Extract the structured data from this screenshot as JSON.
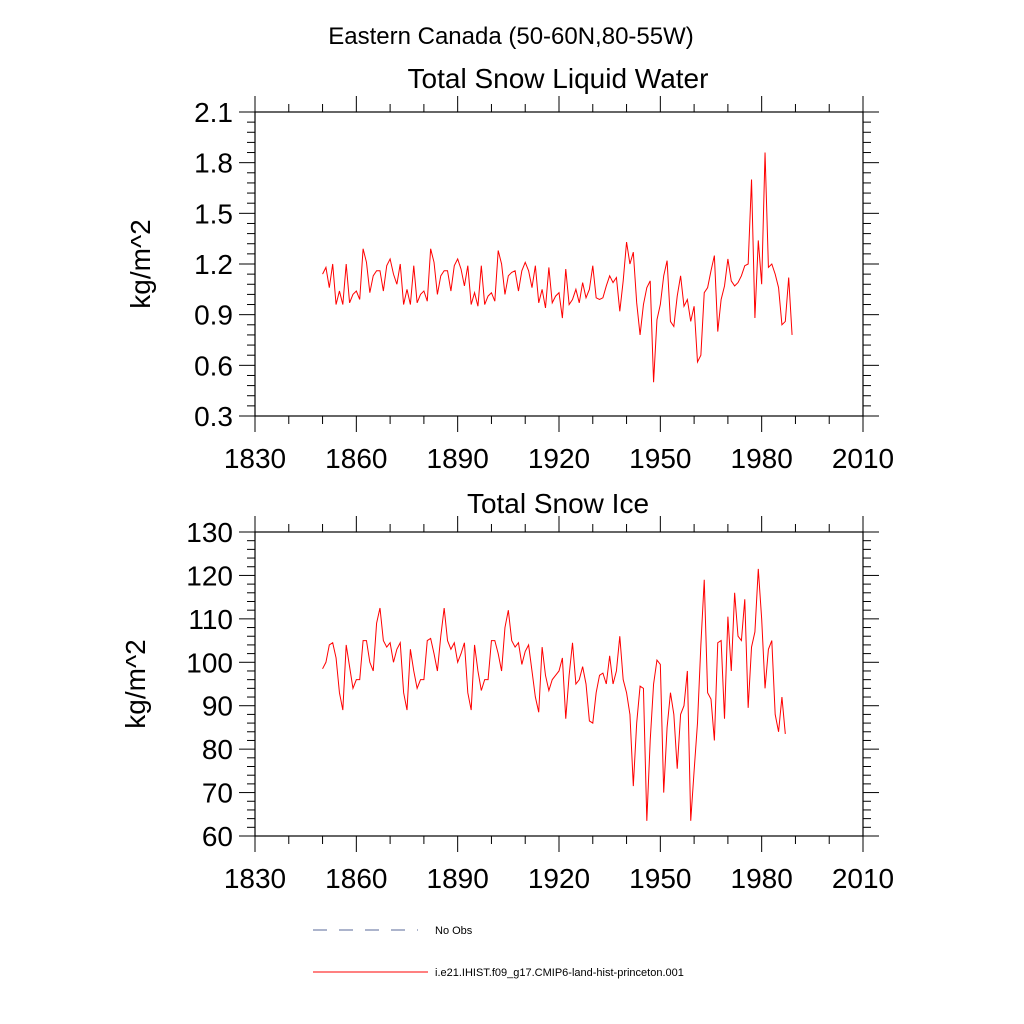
{
  "figure": {
    "title": "Eastern Canada (50-60N,80-55W)"
  },
  "legend": {
    "placement": "bottom",
    "entries": [
      {
        "label": "No Obs",
        "style": "dashed",
        "color": "#5a6a9a"
      },
      {
        "label": "i.e21.IHIST.f09_g17.CMIP6-land-hist-princeton.001",
        "style": "solid",
        "color": "#ff0000"
      }
    ]
  },
  "chart_data": [
    {
      "type": "line",
      "title": "Total Snow Liquid Water",
      "ylabel": "kg/m^2",
      "xlabel": "",
      "xlim": [
        1830,
        2010
      ],
      "ylim": [
        0.3,
        2.1
      ],
      "xticks": [
        "1830",
        "1860",
        "1890",
        "1920",
        "1950",
        "1980",
        "2010"
      ],
      "yticks": [
        "0.3",
        "0.6",
        "0.9",
        "1.2",
        "1.5",
        "1.8",
        "2.1"
      ],
      "grid": false,
      "series": [
        {
          "color": "#ff0000",
          "x_start": 1850,
          "values": [
            1.14,
            1.18,
            1.06,
            1.2,
            0.96,
            1.04,
            0.96,
            1.2,
            0.97,
            1.02,
            1.04,
            0.99,
            1.29,
            1.21,
            1.03,
            1.13,
            1.16,
            1.16,
            1.04,
            1.19,
            1.23,
            1.14,
            1.08,
            1.2,
            0.96,
            1.05,
            0.96,
            1.19,
            0.97,
            1.02,
            1.04,
            0.98,
            1.29,
            1.21,
            1.02,
            1.13,
            1.16,
            1.16,
            1.04,
            1.19,
            1.23,
            1.17,
            1.07,
            1.19,
            0.96,
            1.03,
            0.95,
            1.19,
            0.96,
            1.01,
            1.03,
            0.98,
            1.28,
            1.2,
            1.02,
            1.13,
            1.15,
            1.16,
            1.04,
            1.16,
            1.21,
            1.16,
            1.06,
            1.19,
            0.97,
            1.05,
            0.94,
            1.18,
            0.97,
            1.01,
            1.03,
            0.88,
            1.17,
            0.96,
            0.99,
            1.05,
            0.97,
            1.09,
            1.0,
            1.05,
            1.19,
            1.0,
            0.99,
            1.0,
            1.07,
            1.13,
            1.09,
            1.12,
            0.92,
            1.1,
            1.33,
            1.2,
            1.27,
            0.97,
            0.78,
            0.96,
            1.06,
            1.1,
            0.5,
            0.87,
            0.96,
            1.13,
            1.22,
            0.86,
            0.83,
            1.01,
            1.13,
            0.95,
            0.99,
            0.86,
            0.95,
            0.62,
            0.66,
            1.03,
            1.06,
            1.16,
            1.25,
            0.8,
            0.99,
            1.07,
            1.23,
            1.1,
            1.07,
            1.09,
            1.13,
            1.19,
            1.2,
            1.7,
            0.88,
            1.34,
            1.08,
            1.86,
            1.18,
            1.2,
            1.14,
            1.06,
            0.84,
            0.86,
            1.12,
            0.78
          ]
        }
      ]
    },
    {
      "type": "line",
      "title": "Total Snow Ice",
      "ylabel": "kg/m^2",
      "xlabel": "",
      "xlim": [
        1830,
        2010
      ],
      "ylim": [
        60,
        130
      ],
      "xticks": [
        "1830",
        "1860",
        "1890",
        "1920",
        "1950",
        "1980",
        "2010"
      ],
      "yticks": [
        "60",
        "70",
        "80",
        "90",
        "100",
        "110",
        "120",
        "130"
      ],
      "grid": false,
      "series": [
        {
          "color": "#ff0000",
          "x_start": 1850,
          "values": [
            98.5,
            100,
            104,
            104.5,
            101,
            93,
            89,
            104,
            99,
            94,
            96,
            96,
            105,
            105,
            100,
            98,
            109,
            112.5,
            105,
            103.5,
            104.5,
            100,
            103,
            104.5,
            93,
            89,
            103,
            98,
            94,
            96,
            96,
            105,
            105.5,
            102,
            98,
            106,
            112.5,
            105,
            103,
            104.5,
            100,
            102,
            104.5,
            93,
            89,
            104,
            98,
            93.5,
            96,
            96,
            105,
            105,
            102,
            98,
            108,
            112,
            105,
            103.5,
            104.5,
            99.5,
            102.5,
            104,
            98,
            92,
            88.5,
            103.5,
            97,
            93.5,
            96,
            97,
            98,
            101,
            87,
            97,
            104.5,
            95,
            96,
            99,
            95,
            86.5,
            86,
            93,
            97,
            97.5,
            95,
            101.5,
            95,
            98,
            106,
            96,
            93,
            88,
            71.5,
            86,
            94.5,
            94,
            63.5,
            82,
            95,
            100.5,
            99.5,
            70,
            85,
            93,
            88,
            75.5,
            88,
            90,
            98,
            63.5,
            75,
            86,
            104,
            119,
            93,
            91.5,
            82,
            104.5,
            105,
            87,
            110.5,
            98,
            116,
            106,
            105,
            114.5,
            89.5,
            103.5,
            107,
            121.5,
            110,
            94,
            103,
            105,
            88,
            84,
            92,
            83.5
          ]
        }
      ]
    }
  ]
}
